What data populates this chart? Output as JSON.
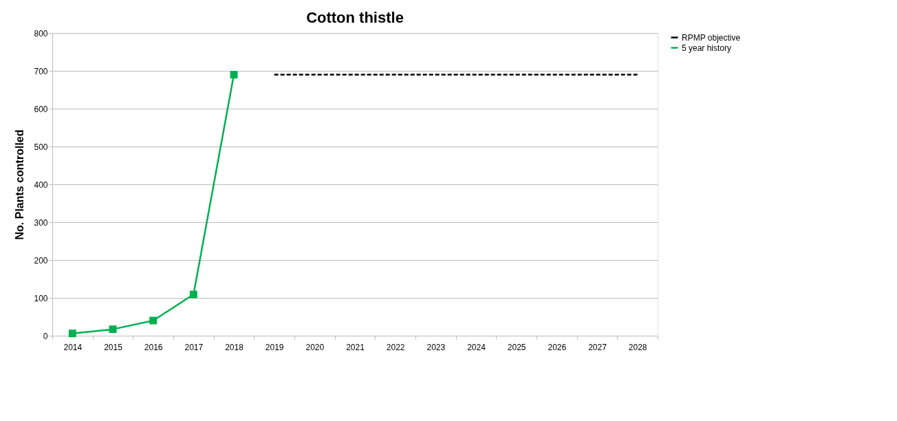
{
  "chart_data": {
    "type": "line",
    "title": "Cotton thistle",
    "ylabel": "No. Plants controlled",
    "categories": [
      "2014",
      "2015",
      "2016",
      "2017",
      "2018",
      "2019",
      "2020",
      "2021",
      "2022",
      "2023",
      "2024",
      "2025",
      "2026",
      "2027",
      "2028"
    ],
    "series": [
      {
        "name": "RPMP objective",
        "color": "#000000",
        "line_style": "dashed",
        "marker": "none",
        "values": [
          null,
          null,
          null,
          null,
          null,
          690,
          690,
          690,
          690,
          690,
          690,
          690,
          690,
          690,
          690
        ]
      },
      {
        "name": "5 year history",
        "color": "#00b050",
        "line_style": "solid",
        "marker": "square",
        "values": [
          6,
          17,
          40,
          109,
          690,
          null,
          null,
          null,
          null,
          null,
          null,
          null,
          null,
          null,
          null
        ]
      }
    ],
    "ylim": [
      0,
      800
    ],
    "yticks": [
      0,
      100,
      200,
      300,
      400,
      500,
      600,
      700,
      800
    ],
    "grid": "y",
    "legend": "right"
  }
}
